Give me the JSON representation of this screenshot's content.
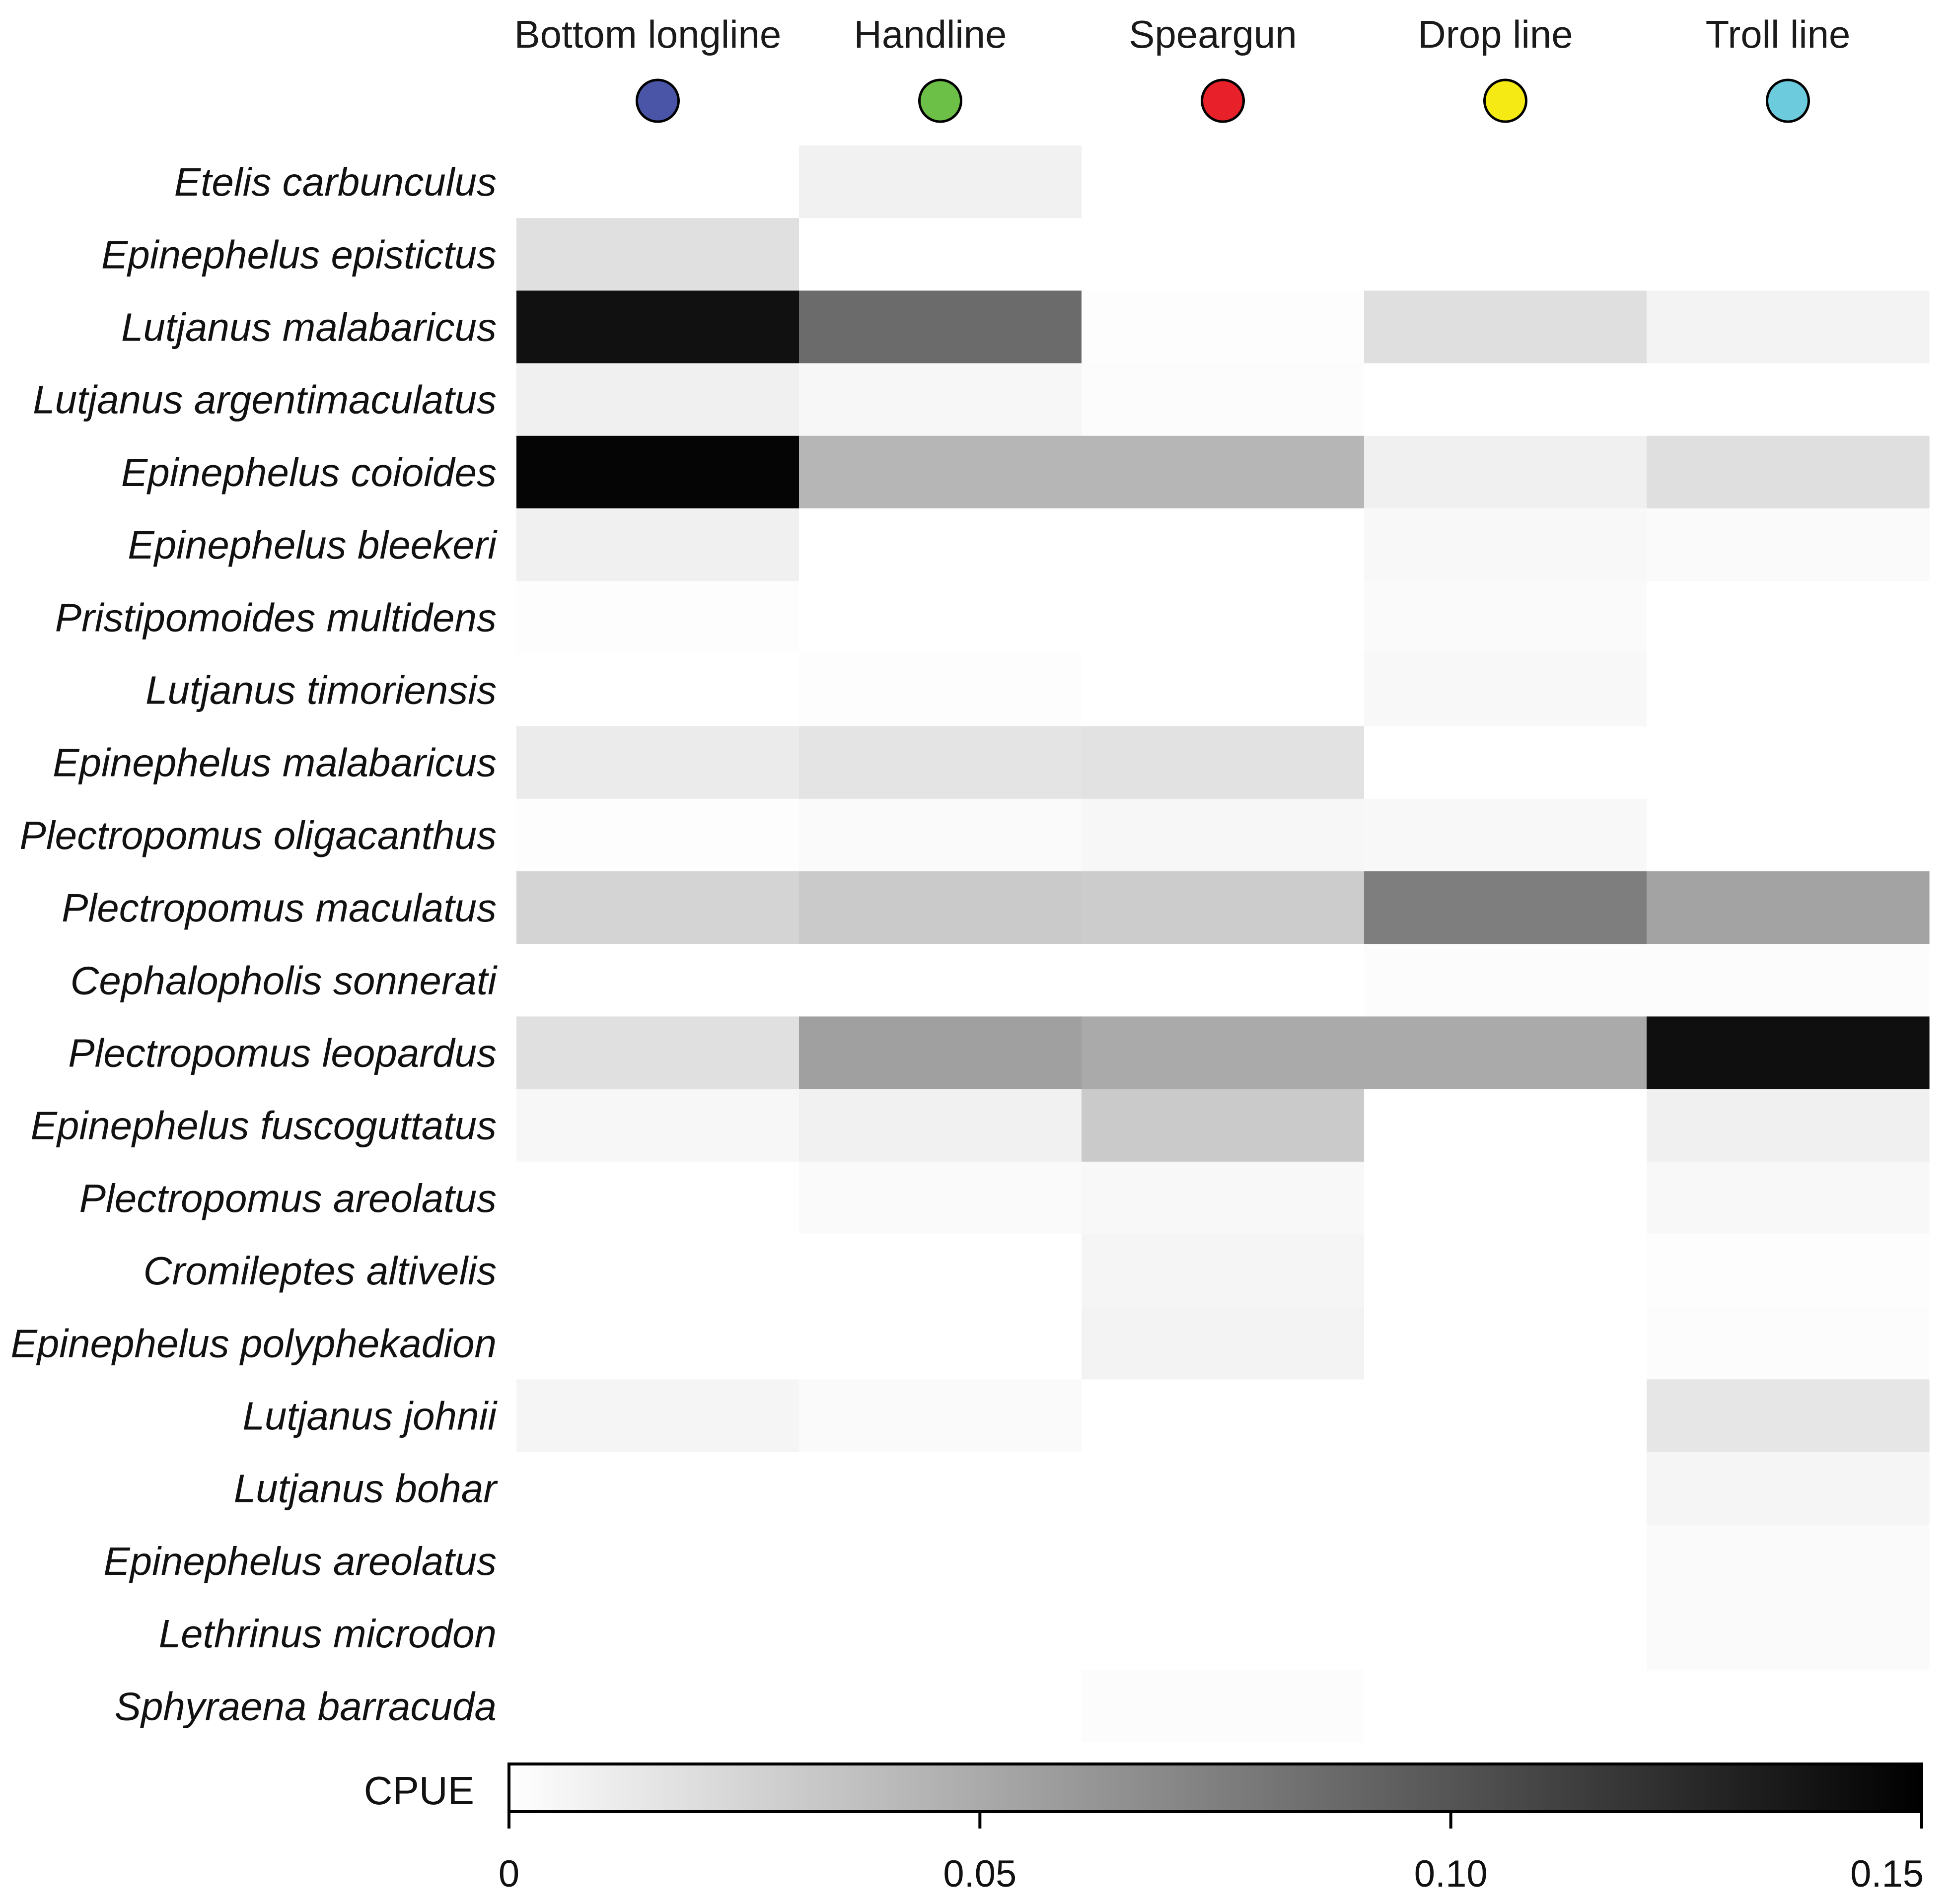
{
  "chart_data": {
    "type": "heatmap",
    "columns": [
      "Bottom longline",
      "Handline",
      "Speargun",
      "Drop line",
      "Troll line"
    ],
    "column_colors": [
      "#4a55a8",
      "#6cbf47",
      "#e8202a",
      "#f5ea14",
      "#6ccbdc"
    ],
    "rows": [
      "Etelis carbunculus",
      "Epinephelus epistictus",
      "Lutjanus malabaricus",
      "Lutjanus argentimaculatus",
      "Epinephelus coioides",
      "Epinephelus bleekeri",
      "Pristipomoides multidens",
      "Lutjanus timoriensis",
      "Epinephelus malabaricus",
      "Plectropomus oligacanthus",
      "Plectropomus maculatus",
      "Cephalopholis sonnerati",
      "Plectropomus leopardus",
      "Epinephelus fuscoguttatus",
      "Plectropomus areolatus",
      "Cromileptes altivelis",
      "Epinephelus polyphekadion",
      "Lutjanus johnii",
      "Lutjanus bohar",
      "Epinephelus areolatus",
      "Lethrinus microdon",
      "Sphyraena barracuda"
    ],
    "values": [
      [
        0.0,
        0.008,
        0.0,
        0.0,
        0.0
      ],
      [
        0.018,
        0.0,
        0.0,
        0.0,
        0.0
      ],
      [
        0.14,
        0.087,
        0.001,
        0.019,
        0.007
      ],
      [
        0.009,
        0.005,
        0.002,
        0.0,
        0.0
      ],
      [
        0.147,
        0.043,
        0.043,
        0.009,
        0.019
      ],
      [
        0.009,
        0.0,
        0.0,
        0.004,
        0.003
      ],
      [
        0.001,
        0.0,
        0.0,
        0.003,
        0.0
      ],
      [
        0.0,
        0.001,
        0.0,
        0.004,
        0.0
      ],
      [
        0.012,
        0.016,
        0.017,
        0.0,
        0.0
      ],
      [
        0.001,
        0.003,
        0.005,
        0.004,
        0.0
      ],
      [
        0.025,
        0.031,
        0.03,
        0.076,
        0.054
      ],
      [
        0.0,
        0.0,
        0.0,
        0.002,
        0.002
      ],
      [
        0.018,
        0.056,
        0.05,
        0.05,
        0.141
      ],
      [
        0.005,
        0.008,
        0.031,
        0.0,
        0.009
      ],
      [
        0.0,
        0.003,
        0.004,
        0.0,
        0.004
      ],
      [
        0.0,
        0.0,
        0.006,
        0.0,
        0.001
      ],
      [
        0.0,
        0.0,
        0.007,
        0.0,
        0.002
      ],
      [
        0.006,
        0.003,
        0.0,
        0.0,
        0.015
      ],
      [
        0.0,
        0.0,
        0.0,
        0.0,
        0.006
      ],
      [
        0.0,
        0.0,
        0.0,
        0.0,
        0.003
      ],
      [
        0.0,
        0.0,
        0.0,
        0.0,
        0.003
      ],
      [
        0.0,
        0.0,
        0.002,
        0.0,
        0.0
      ]
    ],
    "colorbar": {
      "label": "CPUE",
      "range": [
        0,
        0.15
      ],
      "ticks": [
        0,
        0.05,
        0.1,
        0.15
      ],
      "tick_labels": [
        "0",
        "0.05",
        "0.10",
        "0.15"
      ]
    }
  }
}
